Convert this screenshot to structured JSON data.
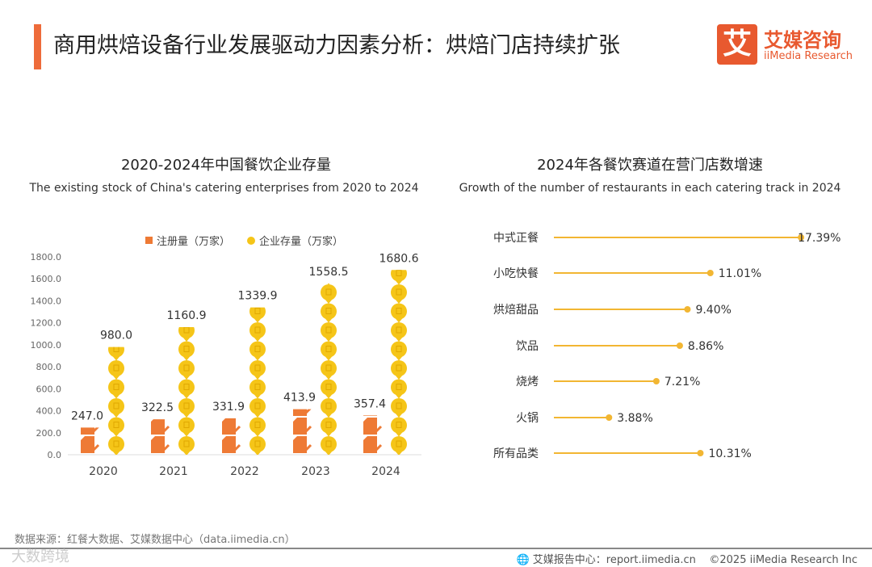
{
  "header": {
    "title": "商用烘焙设备行业发展驱动力因素分析：烘焙门店持续扩张",
    "logo_char": "艾",
    "logo_cn": "艾媒咨询",
    "logo_en": "iiMedia Research"
  },
  "chart_data": [
    {
      "type": "bar",
      "title": "2020-2024年中国餐饮企业存量",
      "subtitle": "The existing stock of China's catering enterprises from 2020 to 2024",
      "categories": [
        "2020",
        "2021",
        "2022",
        "2023",
        "2024"
      ],
      "series": [
        {
          "name": "注册量（万家）",
          "color": "#ee7a35",
          "values": [
            247.0,
            322.5,
            331.9,
            413.9,
            357.4
          ]
        },
        {
          "name": "企业存量（万家）",
          "color": "#f5c518",
          "values": [
            980.0,
            1160.9,
            1339.9,
            1558.5,
            1680.6
          ]
        }
      ],
      "ylim": [
        0,
        1800
      ],
      "yticks": [
        "0.0",
        "200.0",
        "400.0",
        "600.0",
        "800.0",
        "1000.0",
        "1200.0",
        "1400.0",
        "1600.0",
        "1800.0"
      ],
      "legend": "top-center",
      "grid": false
    },
    {
      "type": "bar",
      "orientation": "horizontal-lollipop",
      "title": "2024年各餐饮赛道在营门店数增速",
      "subtitle": "Growth of the number of restaurants in each catering track in 2024",
      "categories": [
        "中式正餐",
        "小吃快餐",
        "烘焙甜品",
        "饮品",
        "烧烤",
        "火锅",
        "所有品类"
      ],
      "values": [
        17.39,
        11.01,
        9.4,
        8.86,
        7.21,
        3.88,
        10.31
      ],
      "labels": [
        "17.39%",
        "11.01%",
        "9.40%",
        "8.86%",
        "7.21%",
        "3.88%",
        "10.31%"
      ],
      "color": "#f2b632"
    }
  ],
  "footer": {
    "source": "数据来源：红餐大数据、艾媒数据中心（data.iimedia.cn）",
    "report": "艾媒报告中心：report.iimedia.cn",
    "copyright": "©2025  iiMedia Research  Inc",
    "watermark": "大数跨境"
  }
}
